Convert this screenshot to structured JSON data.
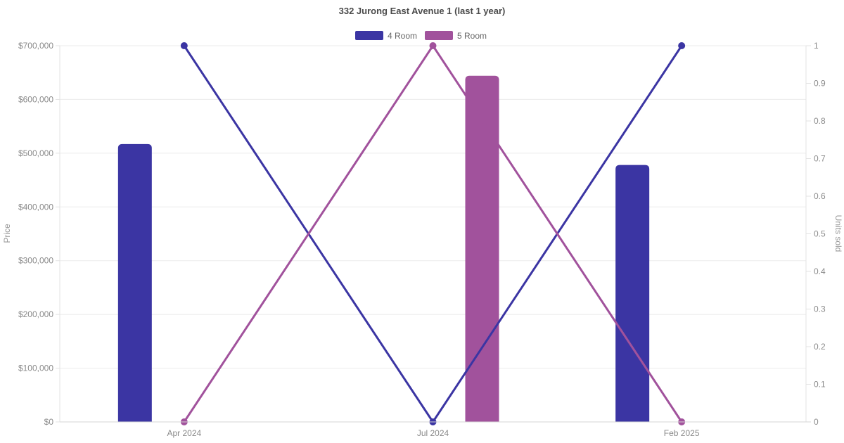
{
  "chart_data": {
    "type": "bar",
    "subtype": "combo-bar-line-dual-axis",
    "title": "332 Jurong East Avenue 1 (last 1 year)",
    "categories": [
      "Apr 2024",
      "Jul 2024",
      "Feb 2025"
    ],
    "series": [
      {
        "name": "4 Room",
        "kind": "bar",
        "axis": "left",
        "color": "#3b35a3",
        "values": [
          517000,
          null,
          478000
        ]
      },
      {
        "name": "5 Room",
        "kind": "bar",
        "axis": "left",
        "color": "#a1529c",
        "values": [
          null,
          644000,
          null
        ]
      },
      {
        "name": "4 Room",
        "kind": "line",
        "axis": "right",
        "color": "#3b35a3",
        "values": [
          1,
          0,
          1
        ]
      },
      {
        "name": "5 Room",
        "kind": "line",
        "axis": "right",
        "color": "#a1529c",
        "values": [
          0,
          1,
          0
        ]
      }
    ],
    "axes": {
      "left": {
        "label": "Price",
        "min": 0,
        "max": 700000,
        "tick_step": 100000,
        "tick_labels": [
          "$0",
          "$100,000",
          "$200,000",
          "$300,000",
          "$400,000",
          "$500,000",
          "$600,000",
          "$700,000"
        ]
      },
      "right": {
        "label": "Units sold",
        "min": 0,
        "max": 1,
        "tick_step": 0.1,
        "tick_labels": [
          "0",
          "0.1",
          "0.2",
          "0.3",
          "0.4",
          "0.5",
          "0.6",
          "0.7",
          "0.8",
          "0.9",
          "1"
        ]
      }
    },
    "legend": {
      "position": "top",
      "items": [
        {
          "label": "4 Room",
          "color": "#3b35a3"
        },
        {
          "label": "5 Room",
          "color": "#a1529c"
        }
      ]
    },
    "grid": {
      "horizontal": true,
      "vertical": false
    },
    "colors": {
      "background": "#ffffff",
      "gridline": "#ebebeb",
      "axis_side_border": "#e3e3e3",
      "axis_bottom_border": "#d6d6d6",
      "tick_text": "#8a8a8a",
      "title_text": "#4b4b4b",
      "legend_text": "#666666",
      "axis_title_text": "#999999"
    }
  }
}
